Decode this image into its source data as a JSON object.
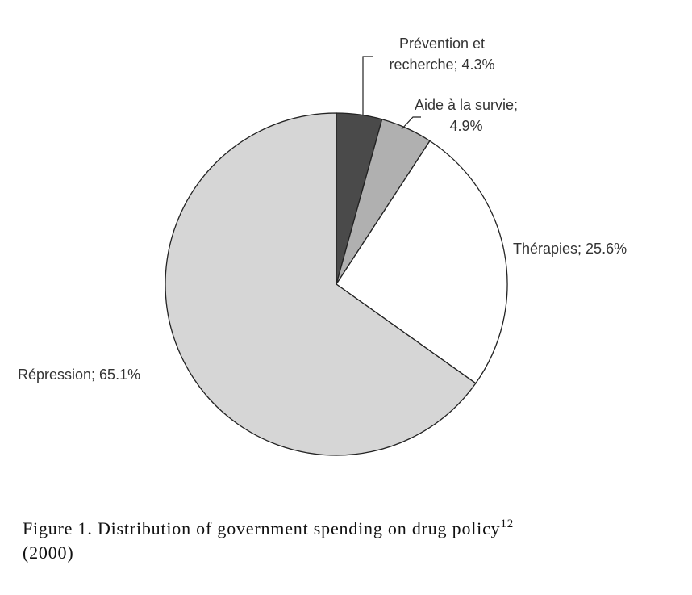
{
  "chart_data": {
    "type": "pie",
    "slices": [
      {
        "label_lines": [
          "Prévention et",
          "recherche; 4.3%"
        ],
        "value": 4.3,
        "color": "#4a4a4a"
      },
      {
        "label_lines": [
          "Aide à la survie;",
          "4.9%"
        ],
        "value": 4.9,
        "color": "#b0b0b0"
      },
      {
        "label_lines": [
          "Thérapies; 25.6%"
        ],
        "value": 25.6,
        "color": "#ffffff"
      },
      {
        "label_lines": [
          "Répression; 65.1%"
        ],
        "value": 65.1,
        "color": "#d6d6d6"
      }
    ],
    "start": "12 o'clock",
    "direction": "clockwise"
  },
  "caption": {
    "text": "Figure 1. Distribution of government spending on drug policy",
    "sup": "12",
    "line2": "(2000)"
  }
}
